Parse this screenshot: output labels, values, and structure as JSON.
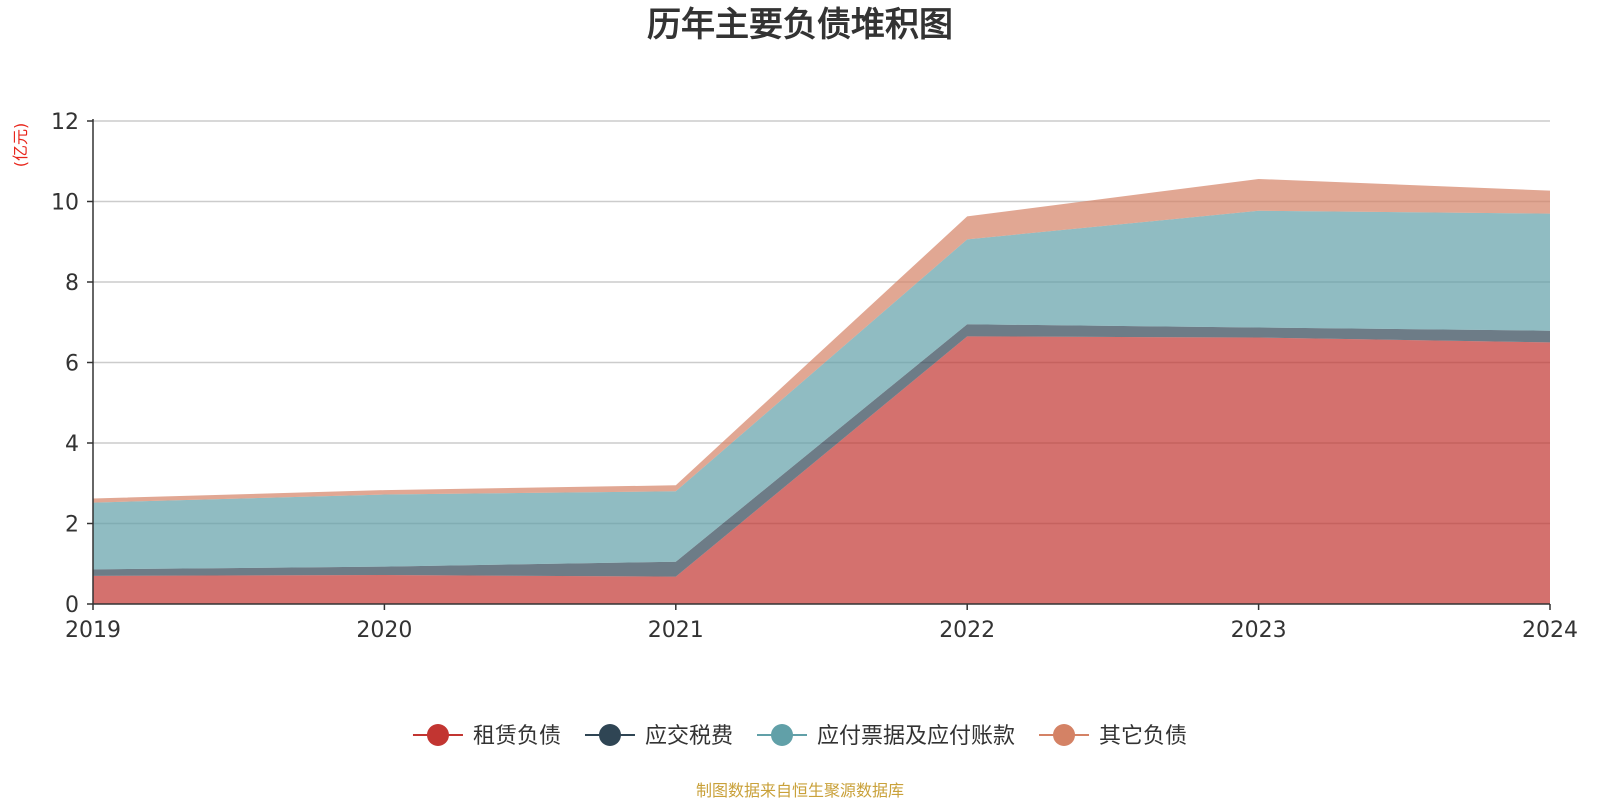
{
  "source_note": "制图数据来自恒生聚源数据库",
  "chart_data": {
    "type": "area",
    "stacked": true,
    "title": "历年主要负债堆积图",
    "unit": "(亿元)",
    "categories": [
      "2019",
      "2020",
      "2021",
      "2022",
      "2023",
      "2024"
    ],
    "ylim": [
      0,
      12
    ],
    "yticks": [
      0,
      2,
      4,
      6,
      8,
      10,
      12
    ],
    "grid": true,
    "legend_position": "bottom",
    "series": [
      {
        "name": "租赁负债",
        "color": "#c23531",
        "values": [
          0.7,
          0.72,
          0.68,
          6.65,
          6.62,
          6.5
        ]
      },
      {
        "name": "应交税费",
        "color": "#2f4554",
        "values": [
          0.16,
          0.21,
          0.37,
          0.3,
          0.25,
          0.29
        ]
      },
      {
        "name": "应付票据及应付账款",
        "color": "#61a0a8",
        "values": [
          1.66,
          1.79,
          1.75,
          2.11,
          2.9,
          2.91
        ]
      },
      {
        "name": "其它负债",
        "color": "#d48265",
        "values": [
          0.1,
          0.11,
          0.15,
          0.57,
          0.79,
          0.57
        ]
      }
    ]
  }
}
